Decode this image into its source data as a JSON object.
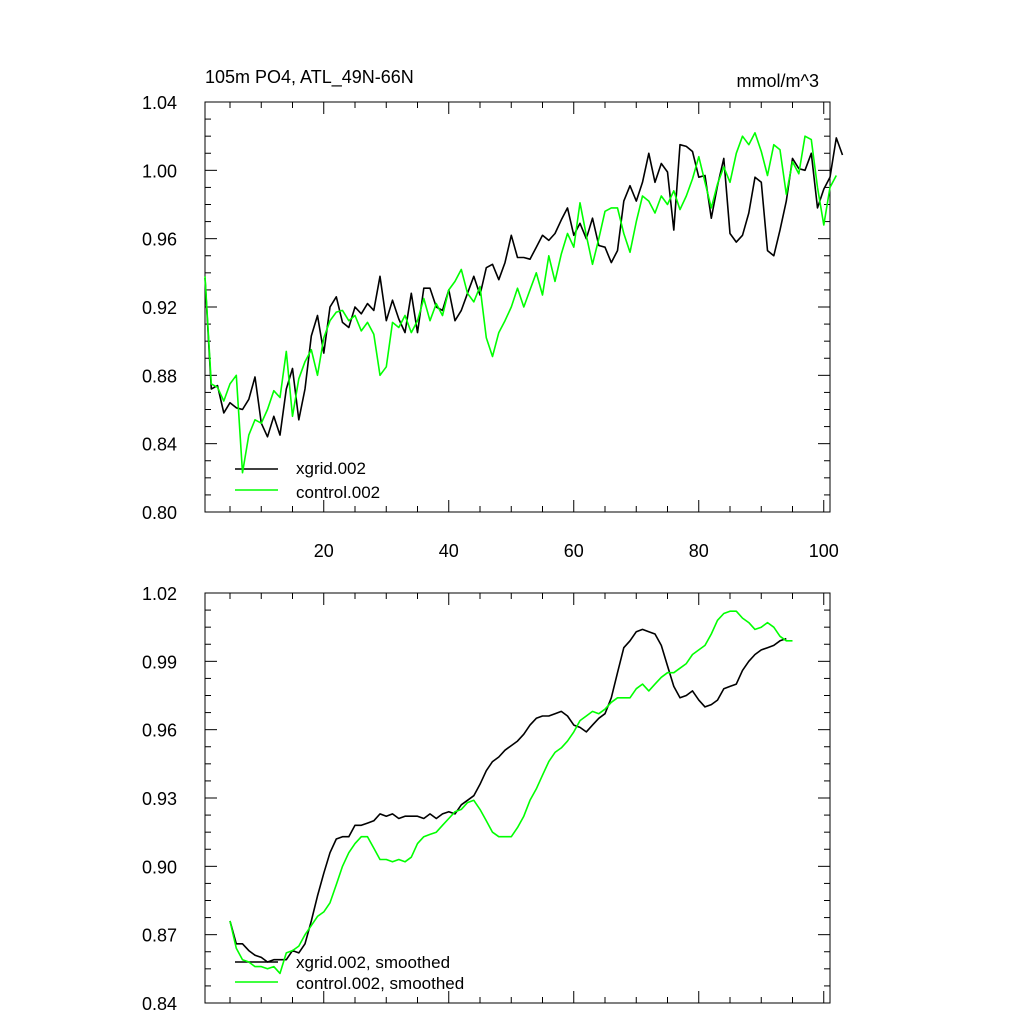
{
  "chart_data": [
    {
      "type": "line",
      "title": "105m PO4, ATL_49N-66N",
      "units": "mmol/m^3",
      "xlabel": "",
      "ylabel": "",
      "xlim": [
        1,
        101
      ],
      "ylim": [
        0.8,
        1.04
      ],
      "x_ticks": [
        20,
        40,
        60,
        80,
        100
      ],
      "y_ticks": [
        0.8,
        0.84,
        0.88,
        0.92,
        0.96,
        1.0,
        1.04
      ],
      "y_tick_labels": [
        "0.80",
        "0.84",
        "0.88",
        "0.92",
        "0.96",
        "1.00",
        "1.04"
      ],
      "legend_position": "bottom-left",
      "series": [
        {
          "name": "xgrid.002",
          "color": "#000000",
          "x_start": 1,
          "values": [
            0.937,
            0.872,
            0.874,
            0.858,
            0.864,
            0.861,
            0.86,
            0.866,
            0.879,
            0.852,
            0.844,
            0.856,
            0.845,
            0.872,
            0.884,
            0.854,
            0.872,
            0.903,
            0.915,
            0.893,
            0.92,
            0.926,
            0.911,
            0.908,
            0.92,
            0.916,
            0.922,
            0.918,
            0.938,
            0.912,
            0.924,
            0.913,
            0.905,
            0.928,
            0.905,
            0.931,
            0.931,
            0.92,
            0.918,
            0.93,
            0.912,
            0.918,
            0.928,
            0.938,
            0.927,
            0.943,
            0.945,
            0.936,
            0.946,
            0.962,
            0.949,
            0.949,
            0.948,
            0.955,
            0.962,
            0.959,
            0.963,
            0.971,
            0.978,
            0.962,
            0.969,
            0.96,
            0.972,
            0.956,
            0.955,
            0.946,
            0.953,
            0.982,
            0.991,
            0.982,
            0.993,
            1.01,
            0.993,
            1.004,
            0.999,
            0.965,
            1.015,
            1.014,
            1.011,
            0.996,
            0.997,
            0.972,
            0.991,
            1.007,
            0.963,
            0.958,
            0.962,
            0.975,
            0.996,
            0.993,
            0.953,
            0.95,
            0.965,
            0.982,
            1.007,
            1.001,
            1.0,
            1.01,
            0.978,
            0.989,
            0.996,
            1.019,
            1.009
          ]
        },
        {
          "name": "control.002",
          "color": "#00ff00",
          "x_start": 1,
          "values": [
            0.938,
            0.875,
            0.873,
            0.865,
            0.875,
            0.88,
            0.823,
            0.845,
            0.854,
            0.852,
            0.86,
            0.871,
            0.867,
            0.894,
            0.856,
            0.878,
            0.888,
            0.895,
            0.88,
            0.902,
            0.912,
            0.917,
            0.918,
            0.912,
            0.915,
            0.906,
            0.911,
            0.904,
            0.88,
            0.885,
            0.911,
            0.908,
            0.915,
            0.905,
            0.912,
            0.925,
            0.912,
            0.922,
            0.915,
            0.93,
            0.935,
            0.942,
            0.928,
            0.923,
            0.932,
            0.902,
            0.891,
            0.905,
            0.912,
            0.92,
            0.931,
            0.92,
            0.93,
            0.94,
            0.927,
            0.95,
            0.935,
            0.951,
            0.963,
            0.955,
            0.981,
            0.962,
            0.945,
            0.96,
            0.976,
            0.978,
            0.978,
            0.963,
            0.952,
            0.97,
            0.985,
            0.982,
            0.975,
            0.985,
            0.98,
            0.988,
            0.977,
            0.985,
            0.995,
            1.008,
            0.993,
            0.978,
            0.992,
            1.002,
            0.993,
            1.01,
            1.02,
            1.015,
            1.022,
            1.011,
            0.997,
            1.015,
            1.012,
            0.986,
            1.005,
            0.998,
            1.02,
            1.018,
            0.99,
            0.968,
            0.99,
            0.997
          ]
        }
      ]
    },
    {
      "type": "line",
      "title": "",
      "xlabel": "",
      "ylabel": "",
      "xlim": [
        1,
        101
      ],
      "ylim": [
        0.84,
        1.02
      ],
      "x_ticks": [
        20,
        40,
        60,
        80,
        100
      ],
      "y_ticks": [
        0.84,
        0.87,
        0.9,
        0.93,
        0.96,
        0.99,
        1.02
      ],
      "y_tick_labels": [
        "0.84",
        "0.87",
        "0.90",
        "0.93",
        "0.96",
        "0.99",
        "1.02"
      ],
      "legend_position": "bottom-left",
      "series": [
        {
          "name": "xgrid.002, smoothed",
          "color": "#000000",
          "x_start": 5,
          "values": [
            0.876,
            0.866,
            0.866,
            0.863,
            0.861,
            0.86,
            0.858,
            0.859,
            0.859,
            0.859,
            0.863,
            0.862,
            0.866,
            0.876,
            0.887,
            0.897,
            0.906,
            0.912,
            0.913,
            0.913,
            0.918,
            0.918,
            0.919,
            0.92,
            0.923,
            0.922,
            0.923,
            0.921,
            0.922,
            0.922,
            0.922,
            0.921,
            0.923,
            0.921,
            0.923,
            0.924,
            0.923,
            0.927,
            0.929,
            0.931,
            0.936,
            0.942,
            0.946,
            0.948,
            0.951,
            0.953,
            0.955,
            0.958,
            0.962,
            0.965,
            0.966,
            0.966,
            0.967,
            0.968,
            0.966,
            0.962,
            0.961,
            0.959,
            0.962,
            0.965,
            0.967,
            0.974,
            0.985,
            0.996,
            0.999,
            1.003,
            1.004,
            1.003,
            1.002,
            0.997,
            0.988,
            0.979,
            0.974,
            0.975,
            0.977,
            0.973,
            0.97,
            0.971,
            0.973,
            0.978,
            0.979,
            0.98,
            0.986,
            0.99,
            0.993,
            0.995,
            0.996,
            0.997,
            0.999,
            1.0
          ]
        },
        {
          "name": "control.002, smoothed",
          "color": "#00ff00",
          "x_start": 5,
          "values": [
            0.876,
            0.864,
            0.859,
            0.858,
            0.856,
            0.856,
            0.855,
            0.856,
            0.853,
            0.862,
            0.863,
            0.865,
            0.87,
            0.874,
            0.878,
            0.88,
            0.884,
            0.892,
            0.9,
            0.906,
            0.91,
            0.913,
            0.913,
            0.908,
            0.903,
            0.903,
            0.902,
            0.903,
            0.902,
            0.904,
            0.91,
            0.913,
            0.914,
            0.915,
            0.918,
            0.921,
            0.924,
            0.925,
            0.928,
            0.929,
            0.925,
            0.92,
            0.915,
            0.913,
            0.913,
            0.913,
            0.917,
            0.922,
            0.929,
            0.934,
            0.94,
            0.946,
            0.95,
            0.952,
            0.955,
            0.959,
            0.964,
            0.966,
            0.968,
            0.967,
            0.969,
            0.972,
            0.974,
            0.974,
            0.974,
            0.978,
            0.98,
            0.977,
            0.98,
            0.983,
            0.985,
            0.985,
            0.987,
            0.989,
            0.993,
            0.995,
            0.997,
            1.002,
            1.008,
            1.011,
            1.012,
            1.012,
            1.009,
            1.007,
            1.004,
            1.005,
            1.007,
            1.005,
            1.001,
            0.999,
            0.999
          ]
        }
      ]
    }
  ]
}
